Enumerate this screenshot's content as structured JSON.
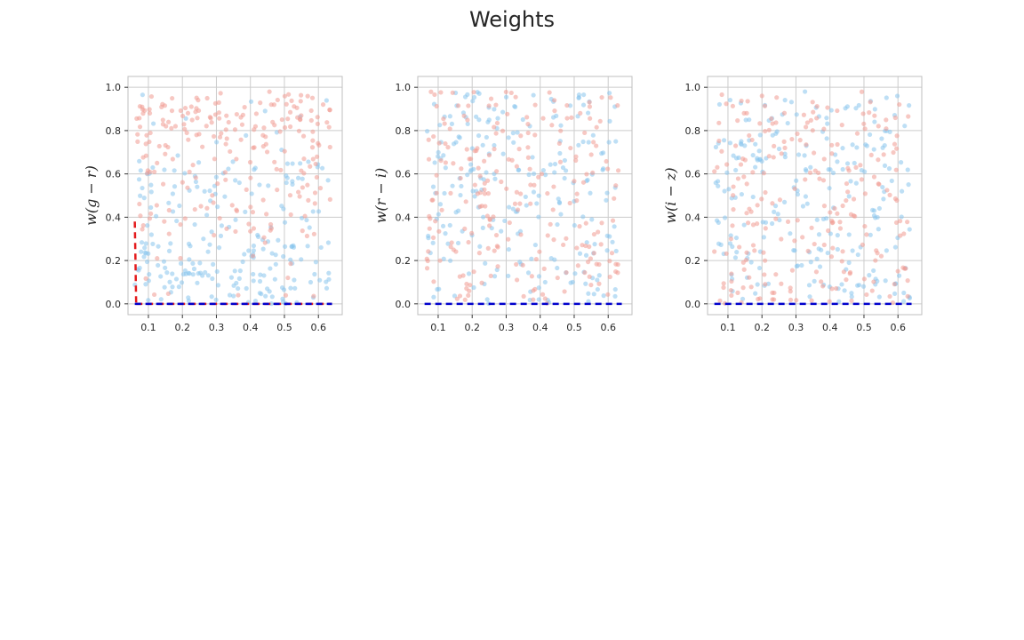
{
  "figure": {
    "title": "Weights"
  },
  "colors": {
    "blue_points": "#88c4ec",
    "red_points": "#f09a92",
    "red_line": "#e41a1c",
    "blue_line": "#0000cc",
    "grid": "#cccccc",
    "axes": "#bfbfbf"
  },
  "chart_data": [
    {
      "type": "scatter",
      "title": "",
      "xlabel": "",
      "ylabel": "w(g − r)",
      "xlim": [
        0.04,
        0.67
      ],
      "ylim": [
        -0.05,
        1.05
      ],
      "xticks": [
        0.1,
        0.2,
        0.3,
        0.4,
        0.5,
        0.6
      ],
      "yticks": [
        0.0,
        0.2,
        0.4,
        0.6,
        0.8,
        1.0
      ],
      "grid": true,
      "series": [
        {
          "name": "blue",
          "color": "#88c4ec",
          "seed": 11,
          "n": 230,
          "y_dist": "low"
        },
        {
          "name": "red",
          "color": "#f09a92",
          "seed": 23,
          "n": 230,
          "y_dist": "high"
        }
      ],
      "lines": [
        {
          "color": "#e41a1c",
          "dash": true,
          "x": [
            0.06,
            0.062,
            0.064
          ],
          "y": [
            0.38,
            0.2,
            0.0
          ]
        },
        {
          "color": "#e41a1c",
          "dash": true,
          "x": [
            0.064,
            0.64
          ],
          "y": [
            0.0,
            0.0
          ]
        },
        {
          "color": "#0000cc",
          "dash": true,
          "x": [
            0.06,
            0.64
          ],
          "y": [
            0.0,
            0.0
          ]
        }
      ]
    },
    {
      "type": "scatter",
      "title": "",
      "xlabel": "",
      "ylabel": "w(r − i)",
      "xlim": [
        0.04,
        0.67
      ],
      "ylim": [
        -0.05,
        1.05
      ],
      "xticks": [
        0.1,
        0.2,
        0.3,
        0.4,
        0.5,
        0.6
      ],
      "yticks": [
        0.0,
        0.2,
        0.4,
        0.6,
        0.8,
        1.0
      ],
      "grid": true,
      "series": [
        {
          "name": "blue",
          "color": "#88c4ec",
          "seed": 37,
          "n": 230,
          "y_dist": "uniform"
        },
        {
          "name": "red",
          "color": "#f09a92",
          "seed": 41,
          "n": 230,
          "y_dist": "uniform"
        }
      ],
      "lines": [
        {
          "color": "#0000cc",
          "dash": true,
          "x": [
            0.06,
            0.64
          ],
          "y": [
            0.0,
            0.0
          ]
        }
      ]
    },
    {
      "type": "scatter",
      "title": "",
      "xlabel": "",
      "ylabel": "w(i − z)",
      "xlim": [
        0.04,
        0.67
      ],
      "ylim": [
        -0.05,
        1.05
      ],
      "xticks": [
        0.1,
        0.2,
        0.3,
        0.4,
        0.5,
        0.6
      ],
      "yticks": [
        0.0,
        0.2,
        0.4,
        0.6,
        0.8,
        1.0
      ],
      "grid": true,
      "series": [
        {
          "name": "blue",
          "color": "#88c4ec",
          "seed": 53,
          "n": 230,
          "y_dist": "uniform"
        },
        {
          "name": "red",
          "color": "#f09a92",
          "seed": 67,
          "n": 230,
          "y_dist": "uniform"
        }
      ],
      "lines": [
        {
          "color": "#0000cc",
          "dash": true,
          "x": [
            0.06,
            0.64
          ],
          "y": [
            0.0,
            0.0
          ]
        }
      ]
    }
  ]
}
